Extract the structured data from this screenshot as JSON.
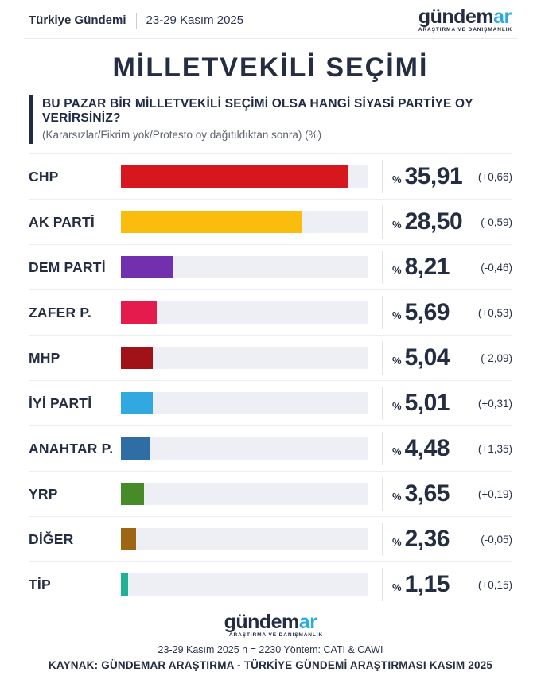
{
  "header": {
    "brand": "Türkiye Gündemi",
    "date_range": "23-29 Kasım 2025"
  },
  "brand_logo": {
    "main": "gündem",
    "accent": "ar",
    "tagline": "ARAŞTIRMA VE DANIŞMANLIK"
  },
  "title": "MİLLETVEKİLİ SEÇİMİ",
  "question": {
    "text": "BU PAZAR BİR MİLLETVEKİLİ SEÇİMİ OLSA HANGİ SİYASİ PARTİYE OY VERİRSİNİZ?",
    "note": "(Kararsızlar/Fikrim yok/Protesto oy dağıtıldıktan sonra) (%)"
  },
  "chart_data": {
    "type": "bar",
    "orientation": "horizontal",
    "title": "MİLLETVEKİLİ SEÇİMİ",
    "unit": "%",
    "value_prefix": "%",
    "xlim": [
      0,
      38.9
    ],
    "grid": false,
    "categories": [
      "CHP",
      "AK PARTİ",
      "DEM PARTİ",
      "ZAFER P.",
      "MHP",
      "İYİ PARTİ",
      "ANAHTAR P.",
      "YRP",
      "DİĞER",
      "TİP"
    ],
    "values": [
      35.91,
      28.5,
      8.21,
      5.69,
      5.04,
      5.01,
      4.48,
      3.65,
      2.36,
      1.15
    ],
    "changes": [
      0.66,
      -0.59,
      -0.46,
      0.53,
      -2.09,
      0.31,
      1.35,
      0.19,
      -0.05,
      0.15
    ],
    "values_display": [
      "35,91",
      "28,50",
      "8,21",
      "5,69",
      "5,04",
      "5,01",
      "4,48",
      "3,65",
      "2,36",
      "1,15"
    ],
    "changes_display": [
      "(+0,66)",
      "(-0,59)",
      "(-0,46)",
      "(+0,53)",
      "(-2,09)",
      "(+0,31)",
      "(+1,35)",
      "(+0,19)",
      "(-0,05)",
      "(+0,15)"
    ],
    "bar_colors": [
      "#D6171E",
      "#FBBD0D",
      "#7330AE",
      "#E51A4D",
      "#A01218",
      "#31A8DF",
      "#2F6EA5",
      "#468B28",
      "#9E6513",
      "#1FB096"
    ],
    "track_color": "#EDEFF4"
  },
  "footer": {
    "methodology": "23-29 Kasım 2025 n = 2230 Yöntem: CATI & CAWI",
    "source": "KAYNAK: GÜNDEMAR ARAŞTIRMA - TÜRKİYE GÜNDEMİ ARAŞTIRMASI KASIM 2025"
  },
  "colors": {
    "navy": "#242D41",
    "accent_cyan": "#29ABE2",
    "track_gray": "#EDEFF4",
    "separator": "#ECEEF1"
  }
}
